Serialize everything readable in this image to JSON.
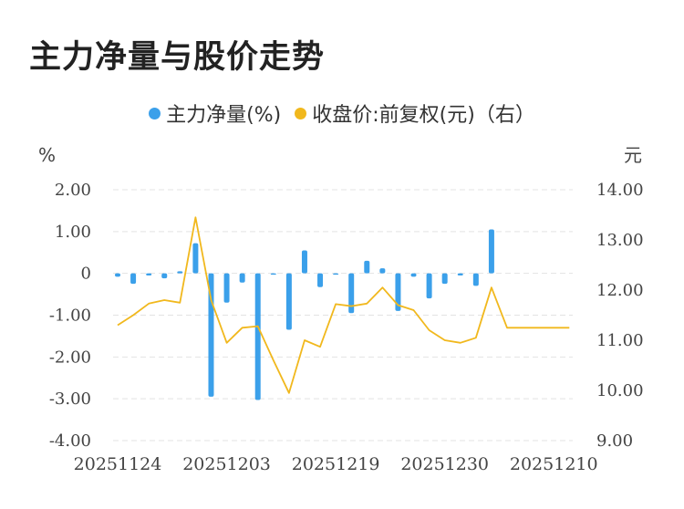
{
  "page": {
    "title": "主力净量与股价走势"
  },
  "colors": {
    "bar": "#3ba0ea",
    "line": "#f1b81d",
    "grid": "#e3e3e3"
  },
  "chart_data": {
    "type": "bar+line",
    "title": "主力净量与股价走势",
    "legend": {
      "placement": "top-center",
      "bar_label": "主力净量(%)",
      "line_label": "收盘价:前复权(元)（右）"
    },
    "left_axis": {
      "unit": "%",
      "ylim": [
        -4,
        2
      ],
      "ticks": [
        2,
        1,
        0,
        -1,
        -2,
        -3,
        -4
      ],
      "tick_labels": [
        "2.00",
        "1.00",
        "0",
        "-1.00",
        "-2.00",
        "-3.00",
        "-4.00"
      ]
    },
    "right_axis": {
      "unit": "元",
      "ylim": [
        9,
        14
      ],
      "ticks": [
        14,
        13,
        12,
        11,
        10,
        9
      ],
      "tick_labels": [
        "14.00",
        "13.00",
        "12.00",
        "11.00",
        "10.00",
        "9.00"
      ]
    },
    "x_tick_labels": [
      "20251124",
      "20251203",
      "20251219",
      "20251230",
      "20251210"
    ],
    "x_tick_index": [
      0,
      7,
      14,
      21,
      28
    ],
    "grid": true,
    "series": [
      {
        "name": "主力净量(%)",
        "kind": "bar",
        "axis": "left",
        "values": [
          -0.08,
          -0.25,
          -0.05,
          -0.12,
          0.05,
          0.72,
          -2.95,
          -0.7,
          -0.22,
          -3.03,
          -0.02,
          -1.35,
          0.55,
          -0.33,
          -0.02,
          -0.95,
          0.3,
          0.12,
          -0.9,
          -0.08,
          -0.6,
          -0.25,
          -0.05,
          -0.3,
          1.05,
          null,
          null,
          null,
          null,
          null
        ]
      },
      {
        "name": "收盘价:前复权(元)（右）",
        "kind": "line",
        "axis": "right",
        "values": [
          11.3,
          11.5,
          11.73,
          11.8,
          11.75,
          13.45,
          11.8,
          10.95,
          11.25,
          11.28,
          10.6,
          9.95,
          11.0,
          10.87,
          11.72,
          11.68,
          11.73,
          12.05,
          11.7,
          11.6,
          11.2,
          11.0,
          10.95,
          11.05,
          12.05,
          11.25,
          11.25,
          11.25,
          11.25,
          11.25
        ]
      }
    ]
  }
}
